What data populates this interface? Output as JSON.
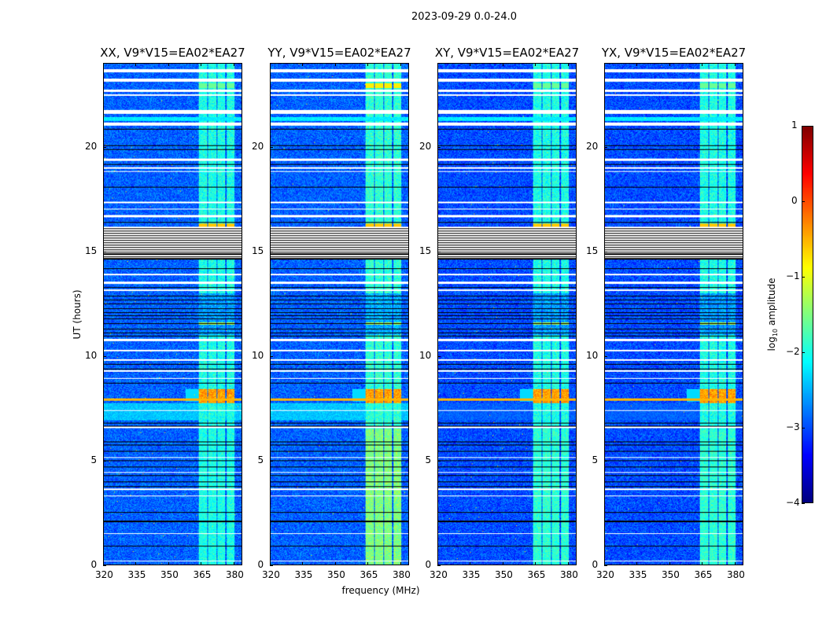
{
  "chart_data": {
    "type": "heatmap",
    "title": "2023-09-29 0.0-24.0",
    "xlabel": "frequency (MHz)",
    "ylabel": "UT (hours)",
    "xlim": [
      320,
      384
    ],
    "ylim": [
      0,
      24
    ],
    "xticks": [
      320,
      335,
      350,
      365,
      380
    ],
    "yticks": [
      0,
      5,
      10,
      15,
      20
    ],
    "colorbar": {
      "label_prefix": "log",
      "label_sub": "10",
      "label_suffix": " amplitude",
      "colormap": "jet",
      "range": [
        -4,
        1
      ],
      "ticks": [
        "1",
        "0",
        "−1",
        "−2",
        "−3",
        "−4"
      ],
      "tick_values": [
        1,
        0,
        -1,
        -2,
        -3,
        -4
      ]
    },
    "panels": [
      {
        "title": "XX, V9*V15=EA02*EA27",
        "background_level": -2.9,
        "band_level": -2.0,
        "early_band_level": -2.0,
        "blue_wash_level": -2.4
      },
      {
        "title": "YY, V9*V15=EA02*EA27",
        "background_level": -2.9,
        "band_level": -1.9,
        "early_band_level": -1.5,
        "blue_wash_level": -2.4
      },
      {
        "title": "XY, V9*V15=EA02*EA27",
        "background_level": -3.0,
        "band_level": -2.0,
        "early_band_level": -1.9,
        "blue_wash_level": -2.9
      },
      {
        "title": "YX, V9*V15=EA02*EA27",
        "background_level": -3.0,
        "band_level": -2.0,
        "early_band_level": -1.9,
        "blue_wash_level": -2.9
      }
    ],
    "bright_subbands_mhz": [
      [
        364,
        368
      ],
      [
        368.5,
        372.3
      ],
      [
        372.8,
        376.5
      ],
      [
        377,
        380.6
      ]
    ],
    "flagged_hours": [
      [
        23.6,
        23.75
      ],
      [
        23.15,
        23.3
      ],
      [
        22.65,
        22.75
      ],
      [
        22.45,
        22.52
      ],
      [
        21.6,
        21.8
      ],
      [
        21.05,
        21.2
      ],
      [
        19.35,
        19.45
      ],
      [
        18.95,
        19.05
      ],
      [
        18.8,
        18.85
      ],
      [
        17.3,
        17.4
      ],
      [
        17.0,
        17.05
      ],
      [
        16.65,
        16.75
      ],
      [
        14.6,
        16.2
      ],
      [
        13.85,
        13.95
      ],
      [
        13.45,
        13.55
      ],
      [
        13.1,
        13.2
      ],
      [
        10.7,
        10.8
      ],
      [
        10.2,
        10.3
      ],
      [
        9.75,
        9.85
      ],
      [
        9.25,
        9.3
      ],
      [
        8.9,
        8.95
      ],
      [
        7.35,
        7.4
      ],
      [
        6.55,
        6.65
      ],
      [
        5.1,
        5.15
      ],
      [
        4.4,
        4.45
      ],
      [
        3.55,
        3.65
      ],
      [
        3.25,
        3.3
      ],
      [
        1.45,
        1.52
      ],
      [
        0.15,
        0.2
      ]
    ],
    "black_line_hours": [
      20.9,
      20.1,
      19.9,
      19.2,
      18.1,
      16.4,
      14.9,
      14.7,
      14.2,
      13.3,
      12.9,
      12.7,
      12.5,
      12.3,
      12.1,
      11.95,
      11.8,
      11.55,
      11.3,
      11.1,
      10.95,
      9.6,
      9.4,
      8.7,
      6.8,
      6.65,
      5.9,
      5.75,
      5.45,
      5.0,
      4.7,
      4.3,
      4.0,
      3.75,
      2.5,
      2.1,
      2.05,
      0.9
    ]
  }
}
